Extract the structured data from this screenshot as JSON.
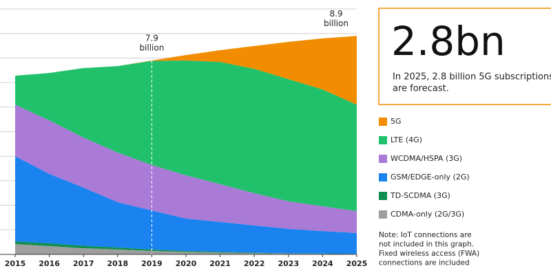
{
  "chart_data": {
    "type": "stacked_area",
    "categories": [
      "2015",
      "2016",
      "2017",
      "2018",
      "2019",
      "2020",
      "2021",
      "2022",
      "2023",
      "2024",
      "2025"
    ],
    "series": [
      {
        "name": "5G",
        "color": "#f28c00",
        "values": [
          0,
          0,
          0,
          0,
          0.02,
          0.22,
          0.48,
          0.93,
          1.52,
          2.08,
          2.8
        ]
      },
      {
        "name": "LTE (4G)",
        "color": "#21c16b",
        "values": [
          1.18,
          1.93,
          2.83,
          3.52,
          4.24,
          4.68,
          4.98,
          5.07,
          4.98,
          4.76,
          4.34
        ]
      },
      {
        "name": "WCDMA/HSPA (3G)",
        "color": "#a97ad6",
        "values": [
          2.1,
          2.18,
          2.04,
          2.02,
          1.85,
          1.76,
          1.54,
          1.31,
          1.12,
          1.01,
          0.89
        ]
      },
      {
        "name": "GSM/EDGE-only (2G)",
        "color": "#1a83f0",
        "values": [
          3.47,
          2.83,
          2.37,
          1.85,
          1.59,
          1.32,
          1.22,
          1.11,
          1.0,
          0.92,
          0.85
        ]
      },
      {
        "name": "TD-SCDMA (3G)",
        "color": "#0f8f4f",
        "values": [
          0.11,
          0.11,
          0.1,
          0.08,
          0.06,
          0.04,
          0.03,
          0.02,
          0.01,
          0.01,
          0.01
        ]
      },
      {
        "name": "CDMA-only (2G/3G)",
        "color": "#9e9e9e",
        "values": [
          0.42,
          0.34,
          0.25,
          0.2,
          0.14,
          0.1,
          0.07,
          0.05,
          0.03,
          0.02,
          0.01
        ]
      }
    ],
    "ylim": [
      0,
      10
    ],
    "yticks": [
      0,
      1,
      2,
      3,
      4,
      5,
      6,
      7,
      8,
      9,
      10
    ],
    "grid": true,
    "annotations": [
      [
        "7.9",
        "billion"
      ],
      [
        "8.9",
        "billion"
      ]
    ],
    "callout": {
      "headline": "2.8bn",
      "text": [
        "In 2025, 2.8 billion 5G subscriptions",
        "are forecast."
      ],
      "color": "#f28c00"
    },
    "note": [
      "Note: IoT connections are",
      "not included in this graph.",
      "Fixed wireless access (FWA)",
      "connections are included"
    ]
  }
}
